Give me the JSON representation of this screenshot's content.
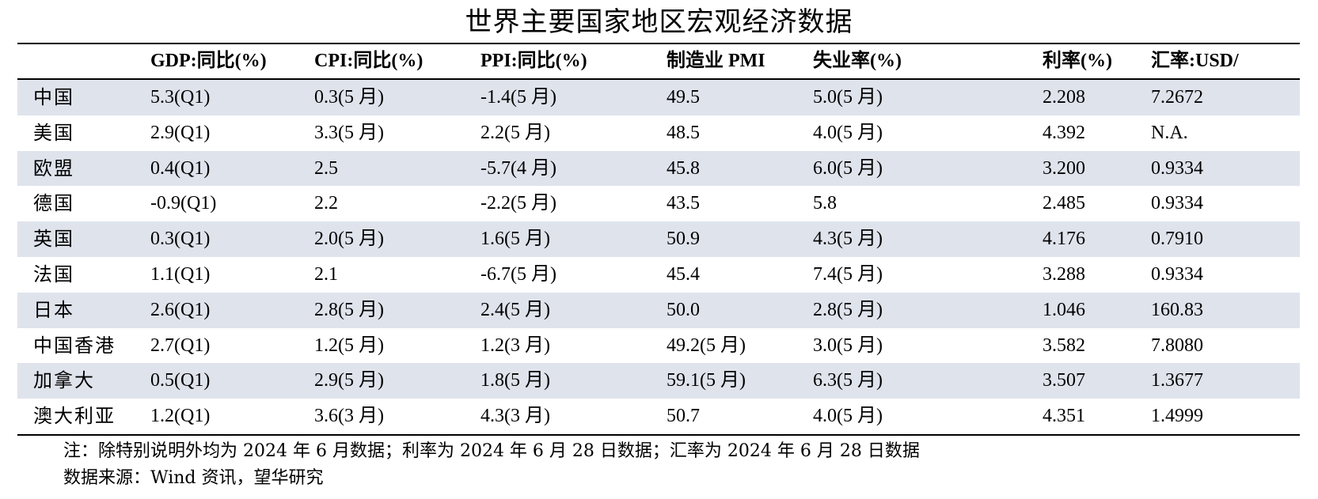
{
  "title": "世界主要国家地区宏观经济数据",
  "columns": [
    "",
    "GDP:同比(%)",
    "CPI:同比(%)",
    "PPI:同比(%)",
    "制造业 PMI",
    "失业率(%)",
    "利率(%)",
    "汇率:USD/"
  ],
  "rows": [
    [
      "中国",
      "5.3(Q1)",
      "0.3(5 月)",
      "-1.4(5 月)",
      "49.5",
      "5.0(5 月)",
      "2.208",
      "7.2672"
    ],
    [
      "美国",
      "2.9(Q1)",
      "3.3(5 月)",
      "2.2(5 月)",
      "48.5",
      "4.0(5 月)",
      "4.392",
      "N.A."
    ],
    [
      "欧盟",
      "0.4(Q1)",
      "2.5",
      "-5.7(4 月)",
      "45.8",
      "6.0(5 月)",
      "3.200",
      "0.9334"
    ],
    [
      "德国",
      "-0.9(Q1)",
      "2.2",
      "-2.2(5 月)",
      "43.5",
      "5.8",
      "2.485",
      "0.9334"
    ],
    [
      "英国",
      "0.3(Q1)",
      "2.0(5 月)",
      "1.6(5 月)",
      "50.9",
      "4.3(5 月)",
      "4.176",
      "0.7910"
    ],
    [
      "法国",
      "1.1(Q1)",
      "2.1",
      "-6.7(5 月)",
      "45.4",
      "7.4(5 月)",
      "3.288",
      "0.9334"
    ],
    [
      "日本",
      "2.6(Q1)",
      "2.8(5 月)",
      "2.4(5 月)",
      "50.0",
      "2.8(5 月)",
      "1.046",
      "160.83"
    ],
    [
      "中国香港",
      "2.7(Q1)",
      "1.2(5 月)",
      "1.2(3 月)",
      "49.2(5 月)",
      "3.0(5 月)",
      "3.582",
      "7.8080"
    ],
    [
      "加拿大",
      "0.5(Q1)",
      "2.9(5 月)",
      "1.8(5 月)",
      "59.1(5 月)",
      "6.3(5 月)",
      "3.507",
      "1.3677"
    ],
    [
      "澳大利亚",
      "1.2(Q1)",
      "3.6(3 月)",
      "4.3(3 月)",
      "50.7",
      "4.0(5 月)",
      "4.351",
      "1.4999"
    ]
  ],
  "note": "注：除特别说明外均为 2024 年 6 月数据；利率为 2024 年 6 月 28 日数据；汇率为 2024 年 6 月 28 日数据",
  "source": "数据来源：Wind 资讯，望华研究",
  "colors": {
    "row_shade": "#dfe3ec"
  }
}
